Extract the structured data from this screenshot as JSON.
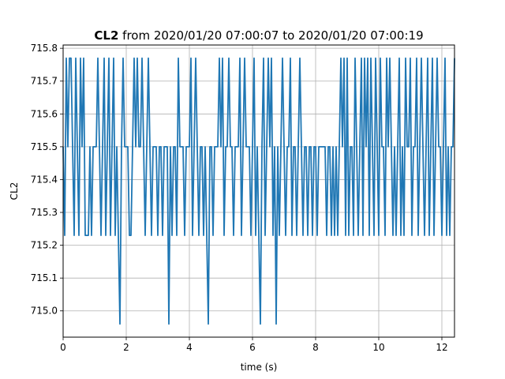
{
  "chart_data": {
    "type": "line",
    "title_bold": "CL2",
    "title_rest": " from 2020/01/20 07:00:07 to 2020/01/20 07:00:19",
    "xlabel": "time (s)",
    "ylabel": "CL2",
    "xlim": [
      0,
      12.4
    ],
    "ylim": [
      714.92,
      715.81
    ],
    "xticks": [
      0,
      2,
      4,
      6,
      8,
      10,
      12
    ],
    "yticks": [
      715.0,
      715.1,
      715.2,
      715.3,
      715.4,
      715.5,
      715.6,
      715.7,
      715.8
    ],
    "ytick_labels": [
      "715.0",
      "715.1",
      "715.2",
      "715.3",
      "715.4",
      "715.5",
      "715.6",
      "715.7",
      "715.8"
    ],
    "grid": true,
    "line_color": "#1f77b4",
    "series": [
      {
        "x": [
          0.0,
          0.05,
          0.1,
          0.15,
          0.2,
          0.25,
          0.3,
          0.35,
          0.4,
          0.45,
          0.5,
          0.55,
          0.6,
          0.65,
          0.7,
          0.75,
          0.8,
          0.85,
          0.9,
          0.95,
          1.0,
          1.05,
          1.1,
          1.15,
          1.2,
          1.25,
          1.3,
          1.35,
          1.4,
          1.45,
          1.5,
          1.55,
          1.6,
          1.65,
          1.7,
          1.75,
          1.8,
          1.85,
          1.9,
          1.95,
          2.0,
          2.05,
          2.1,
          2.15,
          2.2,
          2.25,
          2.3,
          2.35,
          2.4,
          2.45,
          2.5,
          2.55,
          2.6,
          2.65,
          2.7,
          2.75,
          2.8,
          2.85,
          2.9,
          2.95,
          3.0,
          3.05,
          3.1,
          3.15,
          3.2,
          3.25,
          3.3,
          3.35,
          3.4,
          3.45,
          3.5,
          3.55,
          3.6,
          3.65,
          3.7,
          3.75,
          3.8,
          3.85,
          3.9,
          3.95,
          4.0,
          4.05,
          4.1,
          4.15,
          4.2,
          4.25,
          4.3,
          4.35,
          4.4,
          4.45,
          4.5,
          4.55,
          4.6,
          4.65,
          4.7,
          4.75,
          4.8,
          4.85,
          4.9,
          4.95,
          5.0,
          5.05,
          5.1,
          5.15,
          5.2,
          5.25,
          5.3,
          5.35,
          5.4,
          5.45,
          5.5,
          5.55,
          5.6,
          5.65,
          5.7,
          5.75,
          5.8,
          5.85,
          5.9,
          5.95,
          6.0,
          6.05,
          6.1,
          6.15,
          6.2,
          6.25,
          6.3,
          6.35,
          6.4,
          6.45,
          6.5,
          6.55,
          6.6,
          6.65,
          6.7,
          6.75,
          6.8,
          6.85,
          6.9,
          6.95,
          7.0,
          7.05,
          7.1,
          7.15,
          7.2,
          7.25,
          7.3,
          7.35,
          7.4,
          7.45,
          7.5,
          7.55,
          7.6,
          7.65,
          7.7,
          7.75,
          7.8,
          7.85,
          7.9,
          7.95,
          8.0,
          8.05,
          8.1,
          8.15,
          8.2,
          8.25,
          8.3,
          8.35,
          8.4,
          8.45,
          8.5,
          8.55,
          8.6,
          8.65,
          8.7,
          8.75,
          8.8,
          8.85,
          8.9,
          8.95,
          9.0,
          9.05,
          9.1,
          9.15,
          9.2,
          9.25,
          9.3,
          9.35,
          9.4,
          9.45,
          9.5,
          9.55,
          9.6,
          9.65,
          9.7,
          9.75,
          9.8,
          9.85,
          9.9,
          9.95,
          10.0,
          10.05,
          10.1,
          10.15,
          10.2,
          10.25,
          10.3,
          10.35,
          10.4,
          10.45,
          10.5,
          10.55,
          10.6,
          10.65,
          10.7,
          10.75,
          10.8,
          10.85,
          10.9,
          10.95,
          11.0,
          11.05,
          11.1,
          11.15,
          11.2,
          11.25,
          11.3,
          11.35,
          11.4,
          11.45,
          11.5,
          11.55,
          11.6,
          11.65,
          11.7,
          11.75,
          11.8,
          11.85,
          11.9,
          11.95,
          12.0,
          12.05,
          12.1,
          12.15,
          12.2,
          12.25,
          12.3,
          12.35,
          12.4
        ],
        "y": [
          715.5,
          715.23,
          715.77,
          715.5,
          715.77,
          715.77,
          715.5,
          715.23,
          715.77,
          715.5,
          715.23,
          715.77,
          715.5,
          715.77,
          715.23,
          715.23,
          715.23,
          715.5,
          715.23,
          715.5,
          715.5,
          715.5,
          715.77,
          715.5,
          715.23,
          715.5,
          715.77,
          715.23,
          715.5,
          715.77,
          715.23,
          715.5,
          715.77,
          715.23,
          715.5,
          715.23,
          714.96,
          715.5,
          715.77,
          715.5,
          715.5,
          715.5,
          715.23,
          715.23,
          715.5,
          715.77,
          715.5,
          715.77,
          715.5,
          715.5,
          715.77,
          715.5,
          715.23,
          715.5,
          715.77,
          715.5,
          715.23,
          715.5,
          715.5,
          715.5,
          715.23,
          715.5,
          715.5,
          715.23,
          715.5,
          715.5,
          715.5,
          714.96,
          715.5,
          715.23,
          715.5,
          715.5,
          715.23,
          715.77,
          715.5,
          715.5,
          715.5,
          715.23,
          715.5,
          715.5,
          715.5,
          715.77,
          715.23,
          715.5,
          715.77,
          715.5,
          715.23,
          715.5,
          715.5,
          715.23,
          715.5,
          715.23,
          714.96,
          715.5,
          715.5,
          715.23,
          715.5,
          715.5,
          715.5,
          715.77,
          715.5,
          715.77,
          715.23,
          715.5,
          715.5,
          715.77,
          715.5,
          715.5,
          715.23,
          715.5,
          715.5,
          715.5,
          715.77,
          715.23,
          715.5,
          715.77,
          715.5,
          715.5,
          715.5,
          715.23,
          715.5,
          715.77,
          715.23,
          715.5,
          715.23,
          714.96,
          715.5,
          715.77,
          715.23,
          715.5,
          715.77,
          715.5,
          715.77,
          715.23,
          715.5,
          714.96,
          715.5,
          715.23,
          715.5,
          715.77,
          715.5,
          715.23,
          715.5,
          715.5,
          715.77,
          715.23,
          715.5,
          715.5,
          715.23,
          715.5,
          715.77,
          715.5,
          715.23,
          715.5,
          715.5,
          715.23,
          715.5,
          715.5,
          715.23,
          715.5,
          715.5,
          715.23,
          715.5,
          715.5,
          715.5,
          715.5,
          715.5,
          715.23,
          715.5,
          715.5,
          715.23,
          715.5,
          715.23,
          715.5,
          715.23,
          715.5,
          715.77,
          715.5,
          715.77,
          715.23,
          715.77,
          715.23,
          715.5,
          715.5,
          715.23,
          715.77,
          715.5,
          715.23,
          715.5,
          715.77,
          715.23,
          715.77,
          715.5,
          715.77,
          715.23,
          715.77,
          715.5,
          715.23,
          715.77,
          715.5,
          715.23,
          715.77,
          715.5,
          715.5,
          715.23,
          715.77,
          715.5,
          715.77,
          715.5,
          715.23,
          715.5,
          715.23,
          715.5,
          715.77,
          715.23,
          715.5,
          715.23,
          715.77,
          715.5,
          715.5,
          715.77,
          715.23,
          715.5,
          715.5,
          715.77,
          715.23,
          715.5,
          715.77,
          715.5,
          715.23,
          715.5,
          715.77,
          715.23,
          715.5,
          715.77,
          715.23,
          715.5,
          715.77,
          715.5,
          715.5,
          715.23,
          715.5,
          715.77,
          715.23,
          715.5,
          715.23,
          715.5,
          715.5,
          715.77
        ]
      }
    ]
  }
}
